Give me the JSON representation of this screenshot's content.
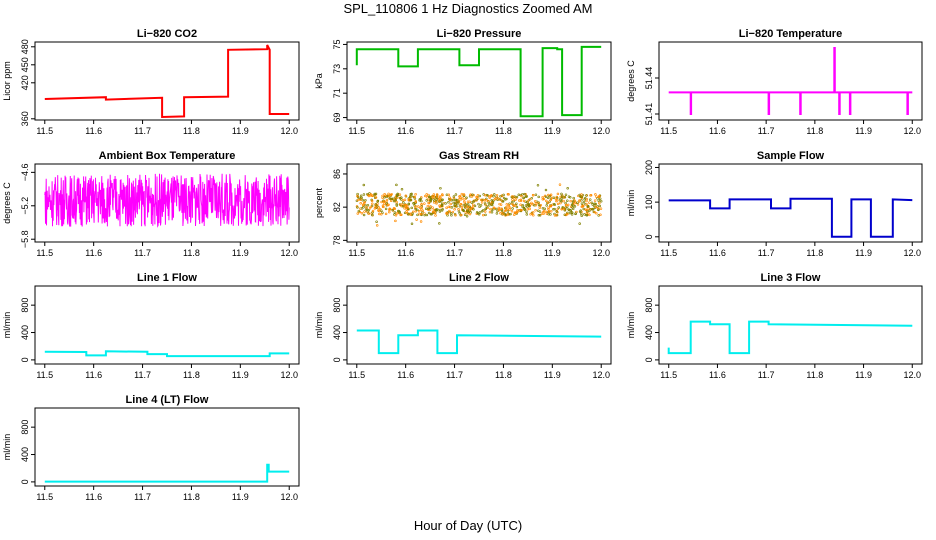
{
  "figure": {
    "title": "SPL_110806  1 Hz Diagnostics Zoomed AM",
    "x_caption": "Hour of Day (UTC)"
  },
  "chart_data": [
    {
      "type": "line",
      "title": "Li−820 CO2",
      "ylabel": "Licor ppm",
      "xlabel": "",
      "color": "#ff0000",
      "xlim": [
        11.48,
        12.02
      ],
      "ylim": [
        358,
        488
      ],
      "xticks": [
        "11.5",
        "11.6",
        "11.7",
        "11.8",
        "11.9",
        "12.0"
      ],
      "yticks": [
        {
          "v": 360,
          "t": "360"
        },
        {
          "v": 420,
          "t": "420"
        },
        {
          "v": 450,
          "t": "450"
        },
        {
          "v": 480,
          "t": "480"
        }
      ],
      "series": [
        {
          "x": [
            11.5,
            11.625,
            11.625,
            11.74,
            11.74,
            11.785,
            11.785,
            11.875,
            11.875,
            11.955,
            11.955,
            11.96,
            11.96,
            12.0
          ],
          "y": [
            393,
            396,
            392,
            395,
            363,
            364,
            396,
            397,
            475,
            476,
            483,
            475,
            368,
            368
          ]
        }
      ]
    },
    {
      "type": "line",
      "title": "Li−820 Pressure",
      "ylabel": "kPa",
      "xlabel": "",
      "color": "#00bb00",
      "xlim": [
        11.48,
        12.02
      ],
      "ylim": [
        68.8,
        75.2
      ],
      "xticks": [
        "11.5",
        "11.6",
        "11.7",
        "11.8",
        "11.9",
        "12.0"
      ],
      "yticks": [
        {
          "v": 69,
          "t": "69"
        },
        {
          "v": 71,
          "t": "71"
        },
        {
          "v": 73,
          "t": "73"
        },
        {
          "v": 75,
          "t": "75"
        }
      ],
      "series": [
        {
          "x": [
            11.5,
            11.5,
            11.585,
            11.585,
            11.625,
            11.625,
            11.71,
            11.71,
            11.75,
            11.75,
            11.835,
            11.835,
            11.88,
            11.88,
            11.91,
            11.91,
            11.92,
            11.92,
            11.96,
            11.96,
            12.0
          ],
          "y": [
            73.3,
            74.6,
            74.6,
            73.2,
            73.2,
            74.6,
            74.6,
            73.3,
            73.3,
            74.6,
            74.6,
            69.1,
            69.1,
            74.7,
            74.7,
            74.6,
            74.6,
            69.2,
            69.2,
            74.8,
            74.8
          ]
        }
      ]
    },
    {
      "type": "line",
      "title": "Li−820 Temperature",
      "ylabel": "degrees C",
      "xlabel": "",
      "color": "#ff00ff",
      "xlim": [
        11.48,
        12.02
      ],
      "ylim": [
        51.405,
        51.47
      ],
      "xticks": [
        "11.5",
        "11.6",
        "11.7",
        "11.8",
        "11.9",
        "12.0"
      ],
      "yticks": [
        {
          "v": 51.41,
          "t": "51.41"
        },
        {
          "v": 51.44,
          "t": "51.44"
        }
      ],
      "series": [
        {
          "x": [
            11.5,
            11.545,
            11.545,
            11.546,
            11.546,
            11.705,
            11.705,
            11.706,
            11.706,
            11.77,
            11.77,
            11.771,
            11.771,
            11.84,
            11.84,
            11.841,
            11.841,
            11.85,
            11.85,
            11.851,
            11.851,
            11.872,
            11.872,
            11.873,
            11.873,
            11.99,
            11.99,
            11.991,
            11.991,
            12.0
          ],
          "y": [
            51.428,
            51.428,
            51.41,
            51.41,
            51.428,
            51.428,
            51.41,
            51.41,
            51.428,
            51.428,
            51.41,
            51.41,
            51.428,
            51.428,
            51.465,
            51.465,
            51.428,
            51.428,
            51.41,
            51.41,
            51.428,
            51.428,
            51.41,
            51.41,
            51.428,
            51.428,
            51.41,
            51.41,
            51.428,
            51.428
          ]
        }
      ]
    },
    {
      "type": "line",
      "title": "Ambient Box Temperature",
      "ylabel": "degrees C",
      "xlabel": "",
      "color": "#ff00ff",
      "xlim": [
        11.48,
        12.02
      ],
      "ylim": [
        -5.85,
        -4.45
      ],
      "xticks": [
        "11.5",
        "11.6",
        "11.7",
        "11.8",
        "11.9",
        "12.0"
      ],
      "yticks": [
        {
          "v": -5.8,
          "t": "−5.8"
        },
        {
          "v": -5.2,
          "t": "−5.2"
        },
        {
          "v": -4.6,
          "t": "−4.6"
        }
      ],
      "noise": {
        "x_start": 11.5,
        "x_end": 12.0,
        "low": -5.55,
        "high": -4.65,
        "amp": 0.95,
        "center": -5.1,
        "n": 700
      }
    },
    {
      "type": "scatter",
      "title": "Gas Stream RH",
      "ylabel": "percent",
      "xlabel": "",
      "color": "#ff8c00",
      "color2": "#808000",
      "xlim": [
        11.48,
        12.02
      ],
      "ylim": [
        77.8,
        87.2
      ],
      "xticks": [
        "11.5",
        "11.6",
        "11.7",
        "11.8",
        "11.9",
        "12.0"
      ],
      "yticks": [
        {
          "v": 78,
          "t": "78"
        },
        {
          "v": 82,
          "t": "82"
        },
        {
          "v": 86,
          "t": "86"
        }
      ],
      "noise": {
        "x_start": 11.5,
        "x_end": 12.0,
        "low": 81.0,
        "high": 83.6,
        "amp": 2.6,
        "center": 82.3,
        "n": 900
      }
    },
    {
      "type": "line",
      "title": "Sample Flow",
      "ylabel": "ml/min",
      "xlabel": "",
      "color": "#0000cc",
      "xlim": [
        11.48,
        12.02
      ],
      "ylim": [
        -15,
        210
      ],
      "xticks": [
        "11.5",
        "11.6",
        "11.7",
        "11.8",
        "11.9",
        "12.0"
      ],
      "yticks": [
        {
          "v": 0,
          "t": "0"
        },
        {
          "v": 100,
          "t": "100"
        },
        {
          "v": 200,
          "t": "200"
        }
      ],
      "series": [
        {
          "x": [
            11.5,
            11.585,
            11.585,
            11.625,
            11.625,
            11.71,
            11.71,
            11.75,
            11.75,
            11.835,
            11.835,
            11.875,
            11.875,
            11.915,
            11.915,
            11.96,
            11.96,
            12.0
          ],
          "y": [
            105,
            105,
            82,
            82,
            108,
            108,
            82,
            82,
            110,
            110,
            0,
            0,
            108,
            108,
            0,
            0,
            108,
            106
          ]
        }
      ]
    },
    {
      "type": "line",
      "title": "Line 1 Flow",
      "ylabel": "ml/min",
      "xlabel": "",
      "color": "#00eeee",
      "xlim": [
        11.48,
        12.02
      ],
      "ylim": [
        -60,
        1080
      ],
      "xticks": [
        "11.5",
        "11.6",
        "11.7",
        "11.8",
        "11.9",
        "12.0"
      ],
      "yticks": [
        {
          "v": 0,
          "t": "0"
        },
        {
          "v": 400,
          "t": "400"
        },
        {
          "v": 800,
          "t": "800"
        }
      ],
      "series": [
        {
          "x": [
            11.5,
            11.585,
            11.585,
            11.625,
            11.625,
            11.71,
            11.71,
            11.75,
            11.75,
            11.96,
            11.96,
            12.0
          ],
          "y": [
            120,
            115,
            65,
            65,
            125,
            118,
            85,
            85,
            55,
            55,
            95,
            95
          ]
        }
      ]
    },
    {
      "type": "line",
      "title": "Line 2 Flow",
      "ylabel": "ml/min",
      "xlabel": "",
      "color": "#00eeee",
      "xlim": [
        11.48,
        12.02
      ],
      "ylim": [
        -60,
        1080
      ],
      "xticks": [
        "11.5",
        "11.6",
        "11.7",
        "11.8",
        "11.9",
        "12.0"
      ],
      "yticks": [
        {
          "v": 0,
          "t": "0"
        },
        {
          "v": 400,
          "t": "400"
        },
        {
          "v": 800,
          "t": "800"
        }
      ],
      "series": [
        {
          "x": [
            11.5,
            11.545,
            11.545,
            11.585,
            11.585,
            11.625,
            11.625,
            11.665,
            11.665,
            11.705,
            11.705,
            12.0
          ],
          "y": [
            430,
            430,
            100,
            100,
            360,
            360,
            430,
            430,
            100,
            100,
            360,
            340
          ]
        }
      ]
    },
    {
      "type": "line",
      "title": "Line 3 Flow",
      "ylabel": "ml/min",
      "xlabel": "",
      "color": "#00eeee",
      "xlim": [
        11.48,
        12.02
      ],
      "ylim": [
        -60,
        1080
      ],
      "xticks": [
        "11.5",
        "11.6",
        "11.7",
        "11.8",
        "11.9",
        "12.0"
      ],
      "yticks": [
        {
          "v": 0,
          "t": "0"
        },
        {
          "v": 400,
          "t": "400"
        },
        {
          "v": 800,
          "t": "800"
        }
      ],
      "series": [
        {
          "x": [
            11.5,
            11.5,
            11.545,
            11.545,
            11.585,
            11.585,
            11.625,
            11.625,
            11.665,
            11.665,
            11.705,
            11.705,
            12.0
          ],
          "y": [
            180,
            100,
            100,
            560,
            560,
            520,
            520,
            100,
            100,
            560,
            560,
            520,
            500
          ]
        }
      ]
    },
    {
      "type": "line",
      "title": "Line 4 (LT) Flow",
      "ylabel": "ml/min",
      "xlabel": "",
      "color": "#00eeee",
      "xlim": [
        11.48,
        12.02
      ],
      "ylim": [
        -60,
        1080
      ],
      "xticks": [
        "11.5",
        "11.6",
        "11.7",
        "11.8",
        "11.9",
        "12.0"
      ],
      "yticks": [
        {
          "v": 0,
          "t": "0"
        },
        {
          "v": 400,
          "t": "400"
        },
        {
          "v": 800,
          "t": "800"
        }
      ],
      "series": [
        {
          "x": [
            11.5,
            11.955,
            11.955,
            11.958,
            11.958,
            12.0
          ],
          "y": [
            5,
            5,
            250,
            250,
            150,
            150
          ]
        }
      ]
    }
  ]
}
